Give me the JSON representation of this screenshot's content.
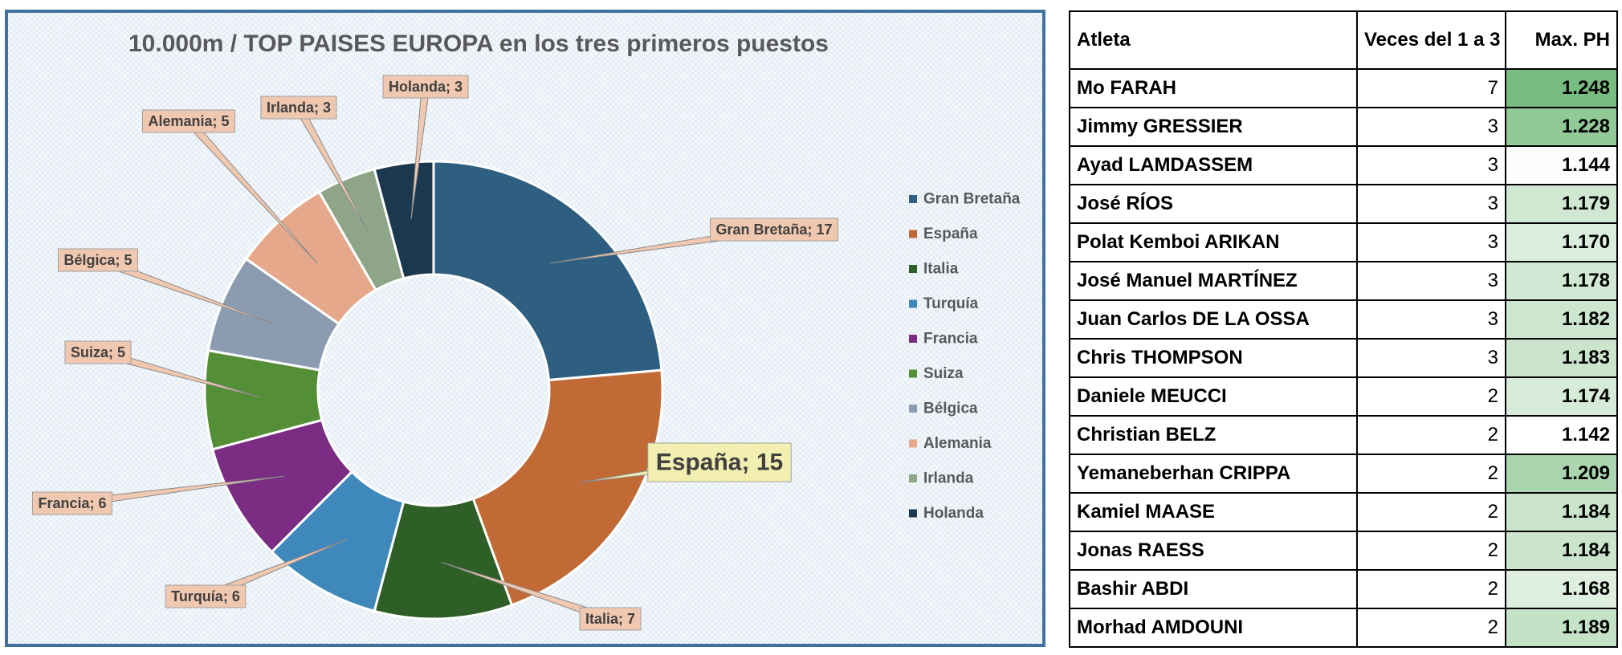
{
  "chart_data": {
    "type": "pie",
    "variant": "donut",
    "title": "10.000m / TOP  PAISES EUROPA en los tres primeros puestos",
    "categories": [
      "Gran Bretaña",
      "España",
      "Italia",
      "Turquía",
      "Francia",
      "Suiza",
      "Bélgica",
      "Alemania",
      "Irlanda",
      "Holanda"
    ],
    "values": [
      17,
      15,
      7,
      6,
      6,
      5,
      5,
      5,
      3,
      3
    ],
    "data_labels": [
      "Gran Bretaña; 17",
      "España; 15",
      "Italia; 7",
      "Turquía; 6",
      "Francia; 6",
      "Suiza; 5",
      "Bélgica; 5",
      "Alemania; 5",
      "Irlanda; 3",
      "Holanda; 3"
    ],
    "colors": [
      "#2e5f80",
      "#c16a36",
      "#2d5f26",
      "#3f88bb",
      "#7a2d82",
      "#548e37",
      "#8c9cb0",
      "#e6a88b",
      "#8ea587",
      "#1c384f"
    ],
    "highlight": "España",
    "highlight_color": "#f2efb0",
    "label_box_color": "#f0c8b0",
    "legend_position": "right"
  },
  "table": {
    "headers": [
      "Atleta",
      "Veces del 1 a 3",
      "Max. PH"
    ],
    "rows": [
      {
        "name": "Mo FARAH",
        "count": "7",
        "ph": "1.248"
      },
      {
        "name": "Jimmy GRESSIER",
        "count": "3",
        "ph": "1.228"
      },
      {
        "name": "Ayad LAMDASSEM",
        "count": "3",
        "ph": "1.144"
      },
      {
        "name": "José RÍOS",
        "count": "3",
        "ph": "1.179"
      },
      {
        "name": "Polat Kemboi ARIKAN",
        "count": "3",
        "ph": "1.170"
      },
      {
        "name": "José Manuel MARTÍNEZ",
        "count": "3",
        "ph": "1.178"
      },
      {
        "name": "Juan Carlos DE LA OSSA",
        "count": "3",
        "ph": "1.182"
      },
      {
        "name": "Chris THOMPSON",
        "count": "3",
        "ph": "1.183"
      },
      {
        "name": "Daniele MEUCCI",
        "count": "2",
        "ph": "1.174"
      },
      {
        "name": "Christian BELZ",
        "count": "2",
        "ph": "1.142"
      },
      {
        "name": "Yemaneberhan CRIPPA",
        "count": "2",
        "ph": "1.209"
      },
      {
        "name": "Kamiel MAASE",
        "count": "2",
        "ph": "1.184"
      },
      {
        "name": "Jonas RAESS",
        "count": "2",
        "ph": "1.184"
      },
      {
        "name": "Bashir ABDI",
        "count": "2",
        "ph": "1.168"
      },
      {
        "name": "Morhad AMDOUNI",
        "count": "2",
        "ph": "1.189"
      }
    ],
    "ph_scale": {
      "min_color": "#ffffff",
      "max_color": "#78bd7f"
    }
  }
}
